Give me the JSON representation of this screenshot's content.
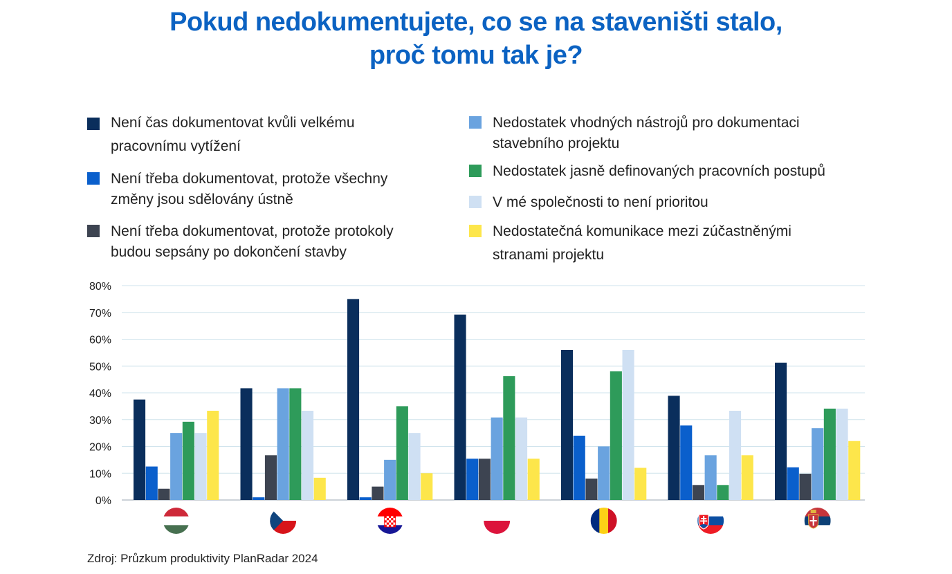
{
  "title_line1": "Pokud nedokumentujete, co se na staveništi stalo,",
  "title_line2": "proč tomu tak je?",
  "source": "Zdroj: Průzkum produktivity PlanRadar 2024",
  "chart_data": {
    "type": "bar",
    "title": "Pokud nedokumentujete, co se na staveništi stalo, proč tomu tak je?",
    "categories": [
      "Maďarsko",
      "Česko",
      "Chorvatsko",
      "Polsko",
      "Rumunsko",
      "Slovensko",
      "Srbsko"
    ],
    "category_icons": [
      "flag-hungary-icon",
      "flag-czechia-icon",
      "flag-croatia-icon",
      "flag-poland-icon",
      "flag-romania-icon",
      "flag-slovakia-icon",
      "flag-serbia-icon"
    ],
    "ylim": [
      0,
      80
    ],
    "yticks": [
      "0%",
      "10%",
      "20%",
      "30%",
      "40%",
      "50%",
      "60%",
      "70%",
      "80%"
    ],
    "grid": true,
    "legend_position": "top",
    "series": [
      {
        "name": "Není čas dokumentovat kvůli velkému pracovnímu vytížení",
        "color": "#0a2e5c",
        "values": [
          37.5,
          41.7,
          75,
          69.2,
          56,
          38.9,
          51.2
        ]
      },
      {
        "name": "Není třeba dokumentovat, protože všechny změny jsou sdělovány ústně",
        "color": "#0a5fcc",
        "values": [
          12.5,
          1,
          1,
          15.4,
          24,
          27.8,
          12.2
        ]
      },
      {
        "name": "Není třeba dokumentovat, protože protokoly budou sepsány po dokončení stavby",
        "color": "#3d4451",
        "values": [
          4.2,
          16.7,
          5,
          15.4,
          8,
          5.6,
          9.8
        ]
      },
      {
        "name": "Nedostatek vhodných nástrojů pro dokumentaci stavebního projektu",
        "color": "#6aa3df",
        "values": [
          25,
          41.7,
          15,
          30.8,
          20,
          16.7,
          26.8
        ]
      },
      {
        "name": "Nedostatek jasně definovaných pracovních postupů",
        "color": "#2e9b5a",
        "values": [
          29.2,
          41.7,
          35,
          46.2,
          48,
          5.6,
          34.1
        ]
      },
      {
        "name": "V mé společnosti to není prioritou",
        "color": "#cfe0f3",
        "values": [
          25,
          33.3,
          25,
          30.8,
          56,
          33.3,
          34.1
        ]
      },
      {
        "name": "Nedostatečná komunikace mezi zúčastněnými stranami projektu",
        "color": "#fde64b",
        "values": [
          33.3,
          8.3,
          10,
          15.4,
          12,
          16.7,
          22
        ]
      }
    ]
  }
}
